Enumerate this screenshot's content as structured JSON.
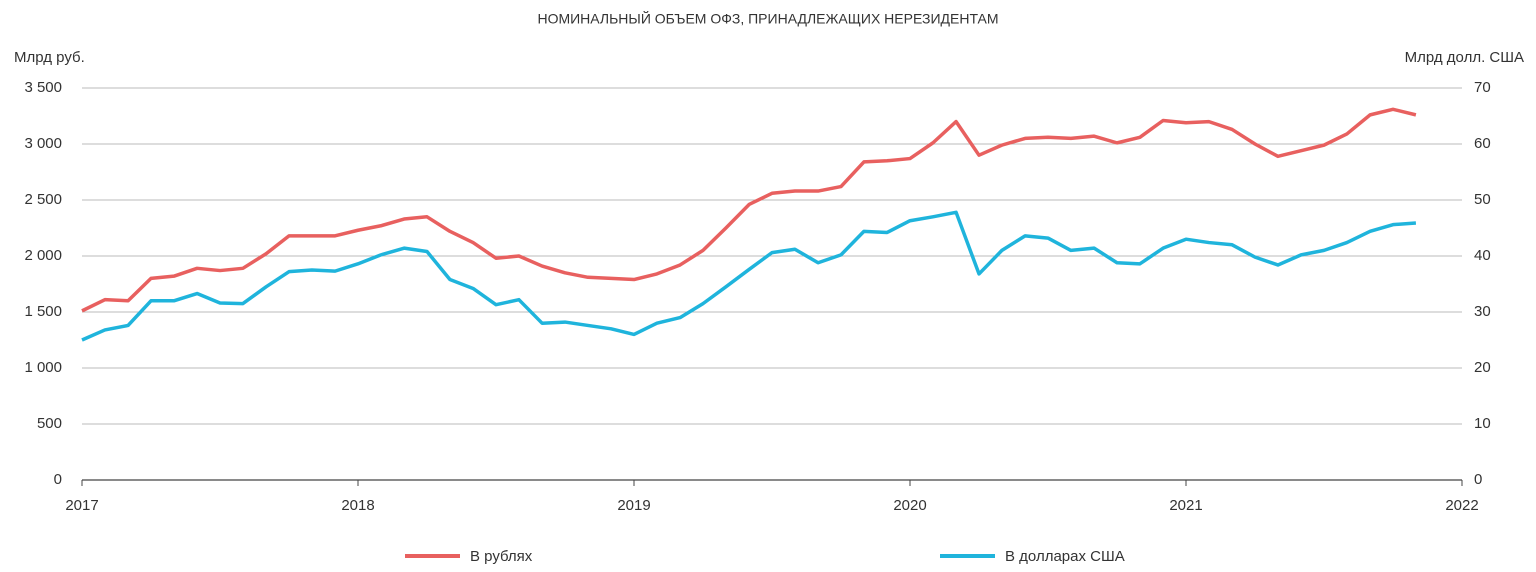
{
  "chart_data": {
    "type": "line",
    "title": "НОМИНАЛЬНЫЙ ОБЪЕМ ОФЗ, ПРИНАДЛЕЖАЩИХ НЕРЕЗИДЕНТАМ",
    "y_label": "Млрд руб.",
    "y2_label": "Млрд долл. США",
    "x": [
      2017,
      2017.083,
      2017.167,
      2017.25,
      2017.333,
      2017.417,
      2017.5,
      2017.583,
      2017.667,
      2017.75,
      2017.833,
      2017.917,
      2018,
      2018.083,
      2018.167,
      2018.25,
      2018.333,
      2018.417,
      2018.5,
      2018.583,
      2018.667,
      2018.75,
      2018.833,
      2018.917,
      2019,
      2019.083,
      2019.167,
      2019.25,
      2019.333,
      2019.417,
      2019.5,
      2019.583,
      2019.667,
      2019.75,
      2019.833,
      2019.917,
      2020,
      2020.083,
      2020.167,
      2020.25,
      2020.333,
      2020.417,
      2020.5,
      2020.583,
      2020.667,
      2020.75,
      2020.833,
      2020.917,
      2021,
      2021.083,
      2021.167,
      2021.25,
      2021.333,
      2021.417,
      2021.5,
      2021.583,
      2021.667,
      2021.75,
      2021.833
    ],
    "xlim": [
      2017,
      2022
    ],
    "xticks": [
      2017,
      2018,
      2019,
      2020,
      2021,
      2022
    ],
    "ylim": [
      0,
      3500
    ],
    "yticks": [
      0,
      500,
      {
        "value": 1000,
        "label": "1 000"
      },
      {
        "value": 1500,
        "label": "1 500"
      },
      {
        "value": 2000,
        "label": "2 000"
      },
      {
        "value": 2500,
        "label": "2 500"
      },
      {
        "value": 3000,
        "label": "3 000"
      },
      {
        "value": 3500,
        "label": "3 500"
      }
    ],
    "y2lim": [
      0,
      70
    ],
    "y2ticks": [
      0,
      10,
      20,
      30,
      40,
      50,
      60,
      70
    ],
    "grid": true,
    "legend": "bottom",
    "series": [
      {
        "name": "В рублях",
        "color": "#e8605f",
        "axis": "y",
        "values": [
          1510,
          1610,
          1600,
          1800,
          1820,
          1890,
          1870,
          1890,
          2020,
          2180,
          2180,
          2180,
          2230,
          2270,
          2330,
          2350,
          2220,
          2120,
          1980,
          2000,
          1910,
          1850,
          1810,
          1800,
          1790,
          1840,
          1920,
          2050,
          2250,
          2460,
          2560,
          2580,
          2580,
          2620,
          2840,
          2850,
          2870,
          3010,
          3200,
          2900,
          2990,
          3050,
          3060,
          3050,
          3070,
          3010,
          3060,
          3210,
          3190,
          3200,
          3130,
          3000,
          2890,
          2940,
          2990,
          3090,
          3260,
          3310,
          3260
        ]
      },
      {
        "name": "В долларах США",
        "color": "#1fb4dc",
        "axis": "y2",
        "values": [
          25,
          26.8,
          27.6,
          32,
          32,
          33.3,
          31.6,
          31.5,
          34.5,
          37.2,
          37.5,
          37.3,
          38.6,
          40.2,
          41.4,
          40.8,
          35.8,
          34.2,
          31.3,
          32.2,
          28,
          28.2,
          27.6,
          27,
          26,
          28,
          29,
          31.5,
          34.5,
          37.6,
          40.6,
          41.2,
          38.8,
          40.2,
          44.4,
          44.2,
          46.3,
          47,
          47.8,
          36.8,
          41,
          43.6,
          43.2,
          41,
          41.4,
          38.8,
          38.6,
          41.4,
          43,
          42.4,
          42,
          39.8,
          38.4,
          40.2,
          41,
          42.4,
          44.4,
          45.6,
          45.9
        ]
      }
    ]
  }
}
